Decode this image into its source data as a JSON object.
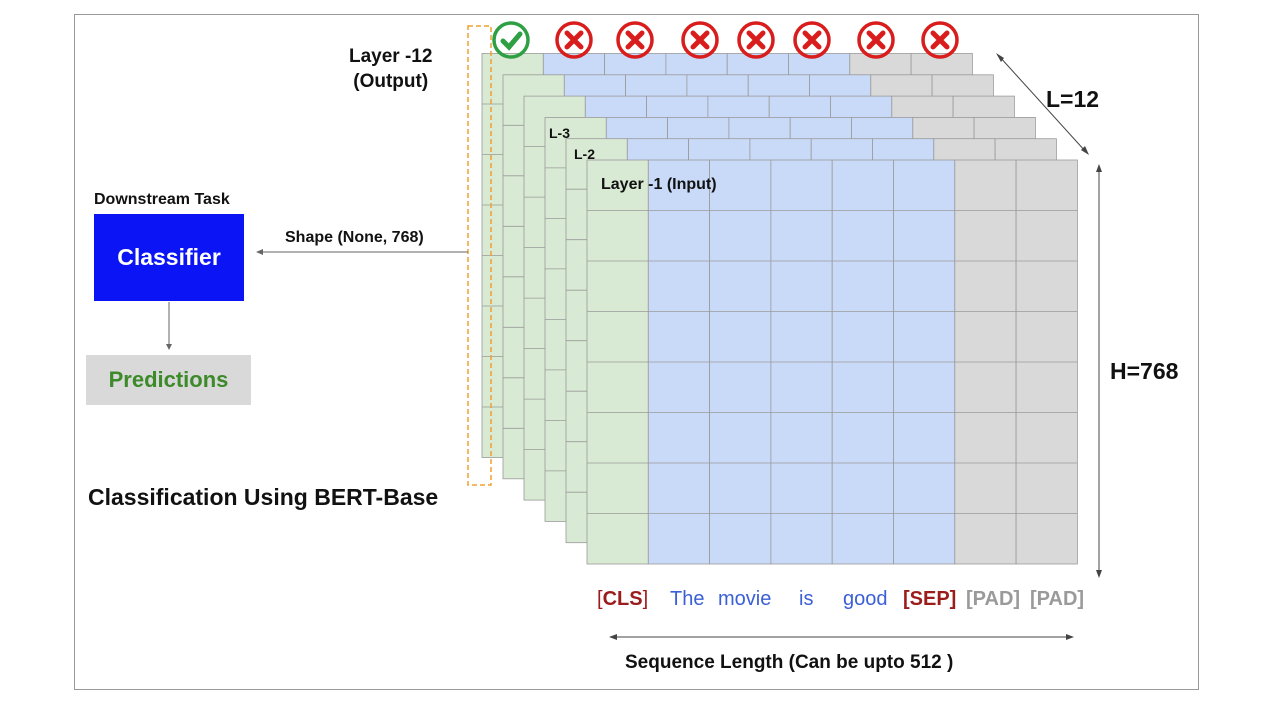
{
  "labels": {
    "output_layer": "Layer -12\n(Output)",
    "input_layer": "Layer -1 (Input)",
    "l3": "L-3",
    "l2": "L-2",
    "l12": "L=12",
    "h768": "H=768",
    "downstream_task": "Downstream Task",
    "shape": "Shape (None, 768)",
    "classifier": "Classifier",
    "predictions": "Predictions",
    "title": "Classification Using BERT-Base",
    "seq_len": "Sequence Length (Can be upto 512 )"
  },
  "tokens": {
    "cls": [
      "[",
      "CLS",
      "]"
    ],
    "words": [
      "The",
      "movie",
      "is",
      "good"
    ],
    "sep": "[SEP]",
    "pad": [
      "[PAD]",
      "[PAD]"
    ]
  },
  "status_markers": [
    "check",
    "cross",
    "cross",
    "cross",
    "cross",
    "cross",
    "cross",
    "cross"
  ],
  "colors": {
    "green_cell": "#d8ead3",
    "blue_cell": "#c9daf8",
    "gray_cell": "#d9d9d9",
    "classifier_bg": "#0a14f5",
    "predictions_text": "#3d8a2a",
    "cls_sep": "#9c1c1c",
    "word": "#3b5fd6",
    "pad": "#9a9a9a",
    "check": "#2ea043",
    "cross": "#d91c1c",
    "dash_box": "#f0a030"
  }
}
